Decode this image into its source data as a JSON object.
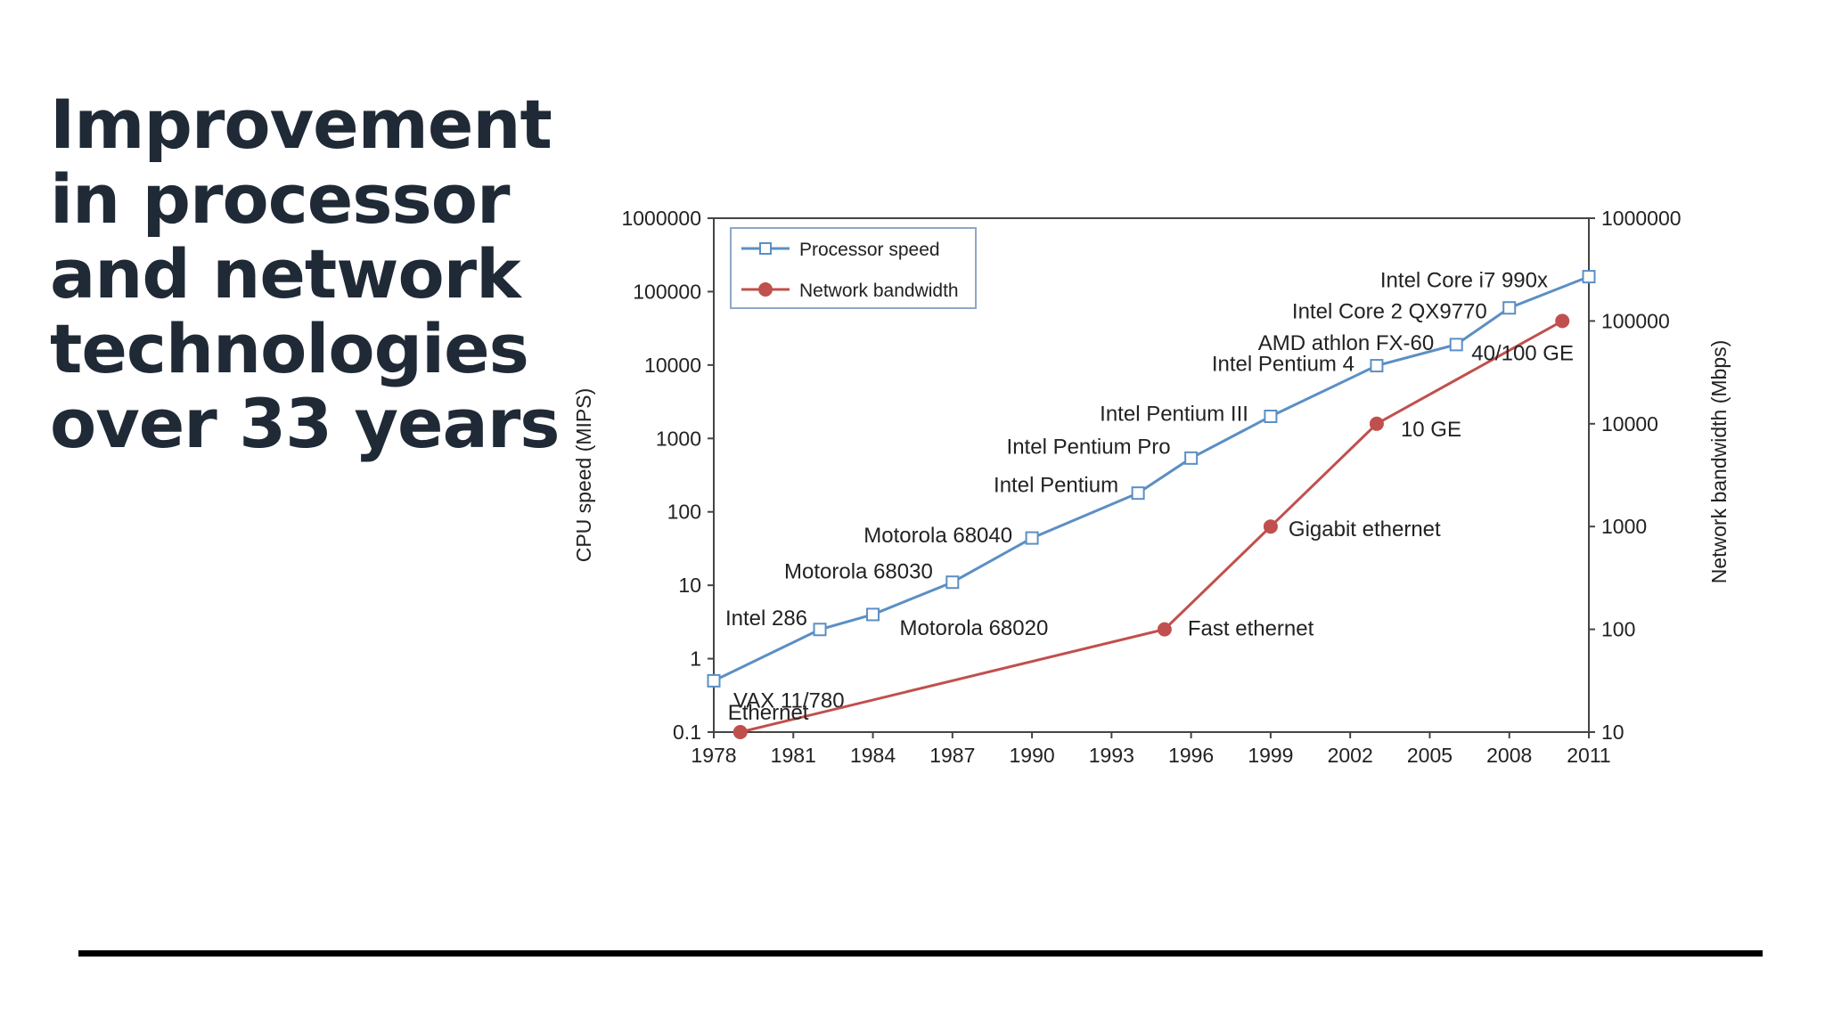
{
  "slide": {
    "title_lines": [
      "Improvement",
      "in processor",
      "and network",
      "technologies",
      "over 33 years"
    ]
  },
  "chart_data": {
    "type": "line",
    "x_ticks": [
      1978,
      1981,
      1984,
      1987,
      1990,
      1993,
      1996,
      1999,
      2002,
      2005,
      2008,
      2011
    ],
    "xlim": [
      1978,
      2011
    ],
    "ylabel_left": "CPU speed (MIPS)",
    "ylabel_right": "Network bandwidth (Mbps)",
    "y_left": {
      "scale": "log",
      "lim": [
        0.1,
        1000000
      ],
      "ticks": [
        "0.1",
        "1",
        "10",
        "100",
        "1000",
        "10000",
        "100000",
        "1000000"
      ]
    },
    "y_right": {
      "scale": "log",
      "lim": [
        10,
        1000000
      ],
      "ticks": [
        "10",
        "100",
        "1000",
        "10000",
        "100000",
        "1000000"
      ]
    },
    "grid": false,
    "legend_position": "top-left",
    "legend": [
      "Processor speed",
      "Network bandwidth"
    ],
    "series": [
      {
        "name": "Processor speed",
        "axis": "left",
        "color": "#5b8fc4",
        "marker": "open-square",
        "points": [
          {
            "x": 1978,
            "y": 0.5,
            "label": "VAX 11/780"
          },
          {
            "x": 1982,
            "y": 2.5,
            "label": "Intel 286"
          },
          {
            "x": 1984,
            "y": 4,
            "label": "Motorola 68020"
          },
          {
            "x": 1987,
            "y": 11,
            "label": "Motorola 68030"
          },
          {
            "x": 1990,
            "y": 44,
            "label": "Motorola 68040"
          },
          {
            "x": 1994,
            "y": 180,
            "label": "Intel Pentium"
          },
          {
            "x": 1996,
            "y": 540,
            "label": "Intel Pentium Pro"
          },
          {
            "x": 1999,
            "y": 2000,
            "label": "Intel Pentium III"
          },
          {
            "x": 2003,
            "y": 9800,
            "label": "Intel Pentium 4"
          },
          {
            "x": 2006,
            "y": 19000,
            "label": "AMD athlon FX-60"
          },
          {
            "x": 2008,
            "y": 60000,
            "label": "Intel Core 2 QX9770"
          },
          {
            "x": 2011,
            "y": 160000,
            "label": "Intel Core i7 990x"
          }
        ]
      },
      {
        "name": "Network bandwidth",
        "axis": "right",
        "color": "#c0504d",
        "marker": "filled-circle",
        "points": [
          {
            "x": 1979,
            "y": 10,
            "label": "Ethernet"
          },
          {
            "x": 1995,
            "y": 100,
            "label": "Fast ethernet"
          },
          {
            "x": 1999,
            "y": 1000,
            "label": "Gigabit ethernet"
          },
          {
            "x": 2003,
            "y": 10000,
            "label": "10 GE"
          },
          {
            "x": 2010,
            "y": 100000,
            "label": "40/100 GE"
          }
        ]
      }
    ]
  }
}
